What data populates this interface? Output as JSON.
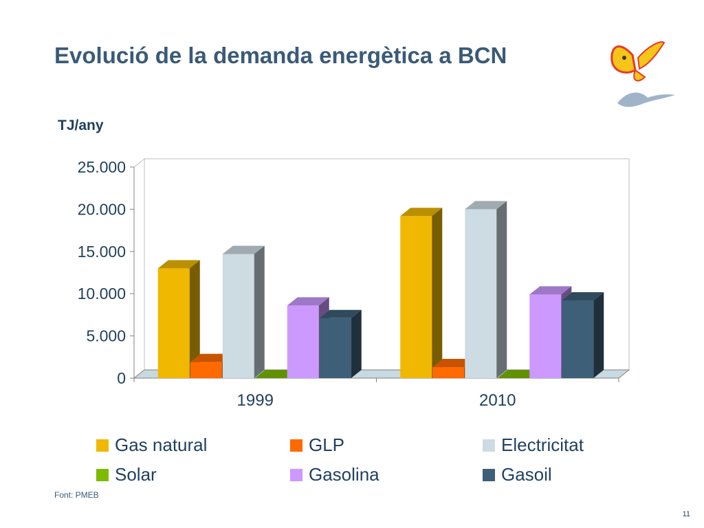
{
  "slide": {
    "title": "Evolució de la demanda energètica a BCN",
    "source": "Font: PMEB",
    "page_number": "11"
  },
  "logo": {
    "icon": "butterfly-logo-icon",
    "colors": [
      "#f5c518",
      "#e8392a",
      "#8fa9c4"
    ]
  },
  "chart_data": {
    "type": "bar",
    "style": "3d-clustered",
    "ylabel": "TJ/any",
    "categories": [
      "1999",
      "2010"
    ],
    "ylim": [
      0,
      25000
    ],
    "yticks": [
      0,
      5000,
      10000,
      15000,
      20000,
      25000
    ],
    "ytick_labels": [
      "0",
      "5.000",
      "10.000",
      "15.000",
      "20.000",
      "25.000"
    ],
    "grid": false,
    "legend_position": "bottom",
    "series": [
      {
        "name": "Gas natural",
        "color": "#f0b800",
        "values": [
          13000,
          19200
        ]
      },
      {
        "name": "GLP",
        "color": "#ff6a00",
        "values": [
          1900,
          1300
        ]
      },
      {
        "name": "Electricitat",
        "color": "#cddbe3",
        "values": [
          14700,
          20000
        ]
      },
      {
        "name": "Solar",
        "color": "#7dba00",
        "values": [
          0,
          0
        ]
      },
      {
        "name": "Gasolina",
        "color": "#cc99ff",
        "values": [
          8600,
          9900
        ]
      },
      {
        "name": "Gasoil",
        "color": "#3d5f77",
        "values": [
          7100,
          9200
        ]
      }
    ]
  }
}
